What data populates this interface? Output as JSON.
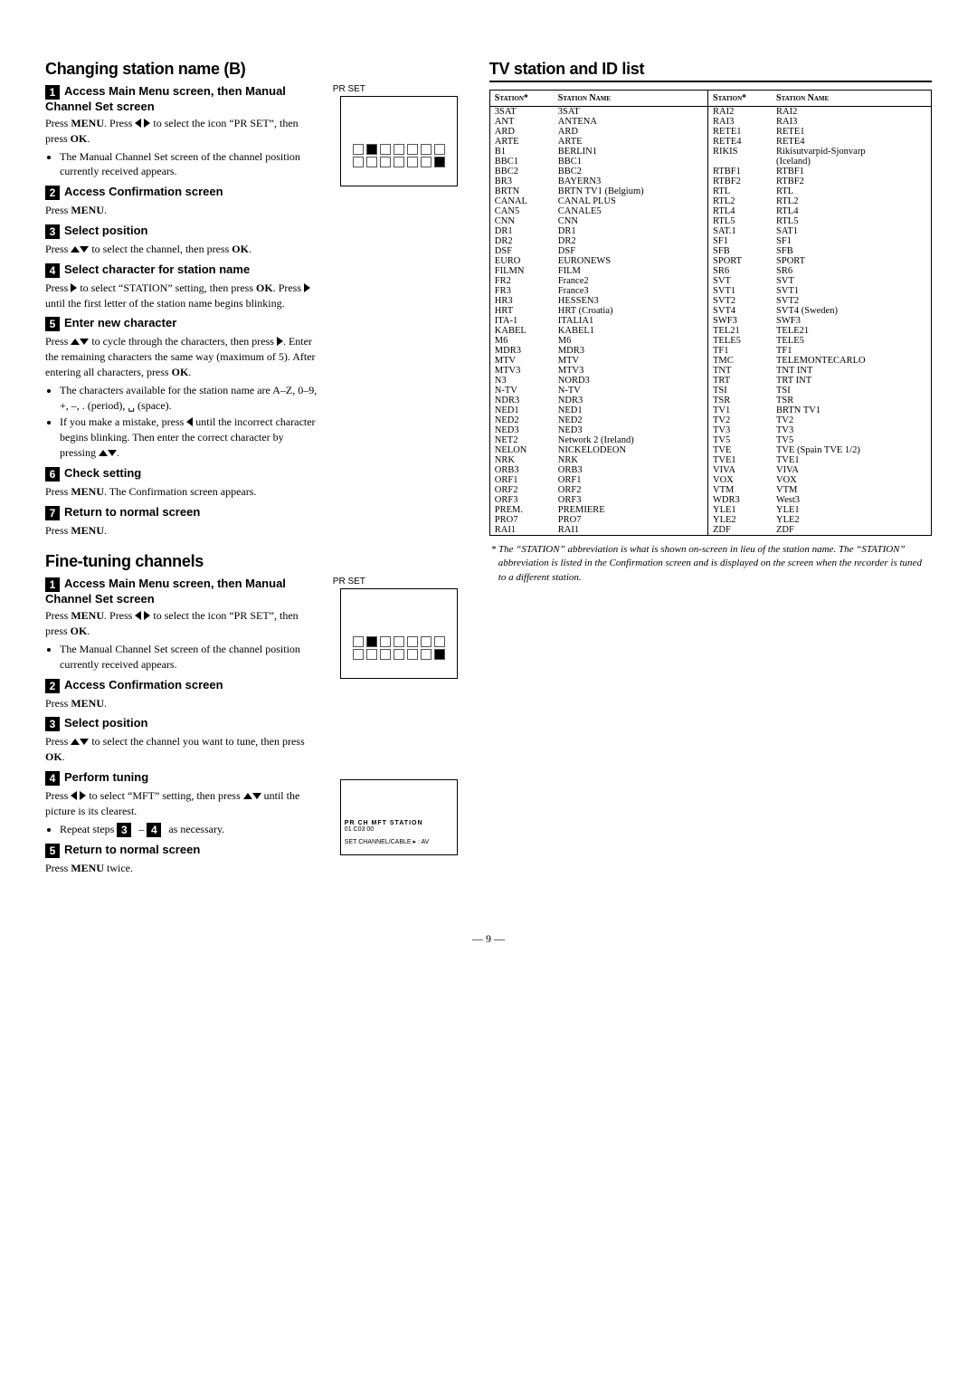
{
  "page_number": "— 9 —",
  "leftcol": {
    "sectionA": {
      "title": "Changing station name (B)",
      "fig1_label": "PR SET",
      "steps": [
        {
          "num": "1",
          "title": "Access Main Menu screen, then Manual Channel Set screen",
          "body": "Press <b>MENU</b>. Press ◁ ▷ to select the icon “PR SET”, then press <b>OK</b>.",
          "bullets": [
            "The Manual Channel Set screen of the channel position currently received appears."
          ]
        },
        {
          "num": "2",
          "title": "Access Confirmation screen",
          "body": "Press <b>MENU</b>."
        },
        {
          "num": "3",
          "title": "Select position",
          "body": "Press △▽ to select the channel, then press <b>OK</b>."
        },
        {
          "num": "4",
          "title": "Select character for station name",
          "body": "Press ▷ to select “STATION” setting, then press <b>OK</b>. Press ▷ until the first letter of the station name begins blinking."
        },
        {
          "num": "5",
          "title": "Enter new character",
          "body": "Press △▽ to cycle through the characters, then press ▷. Enter the remaining characters the same way (maximum of 5). After entering all characters, press <b>OK</b>.",
          "bullets": [
            "The characters available for the station name are A–Z, 0–9, +, –, . (period), ␣ (space).",
            "If you make a mistake, press ◁ until the incorrect character begins blinking. Then enter the correct character by pressing △▽."
          ]
        },
        {
          "num": "6",
          "title": "Check setting",
          "body": "Press <b>MENU</b>. The Confirmation screen appears."
        },
        {
          "num": "7",
          "title": "Return to normal screen",
          "body": "Press <b>MENU</b>."
        }
      ]
    },
    "sectionB": {
      "title": "Fine-tuning channels",
      "fig1_label": "PR SET",
      "fig2_lines": [
        "PR  CH  MFT  STATION",
        "01  C03  00",
        "SET    CHANNEL/CABLE ▸ : AV"
      ],
      "steps": [
        {
          "num": "1",
          "title": "Access Main Menu screen, then Manual Channel Set screen",
          "body": "Press <b>MENU</b>. Press ◁ ▷ to select the icon “PR SET”, then press <b>OK</b>.",
          "bullets": [
            "The Manual Channel Set screen of the channel position currently received appears."
          ]
        },
        {
          "num": "2",
          "title": "Access Confirmation screen",
          "body": "Press <b>MENU</b>."
        },
        {
          "num": "3",
          "title": "Select position",
          "body": "Press △▽ to select the channel you want to tune, then press <b>OK</b>."
        },
        {
          "num": "4",
          "title": "Perform tuning",
          "body": "Press ◁ ▷ to select “MFT” setting, then press △▽ until the picture is its clearest.",
          "bullets": [
            "Repeat steps <span class='num-badge'>3</span> – <span class='num-badge'>4</span> as necessary."
          ]
        },
        {
          "num": "5",
          "title": "Return to normal screen",
          "body": "Press <b>MENU</b> twice."
        }
      ]
    }
  },
  "rightcol": {
    "title": "TV station and ID list",
    "table_headers": [
      "Station*",
      "Station Name",
      "Station*",
      "Station Name"
    ],
    "rows": [
      [
        "3SAT",
        "3SAT",
        "RAI2",
        "RAI2"
      ],
      [
        "ANT",
        "ANTENA",
        "RAI3",
        "RAI3"
      ],
      [
        "ARD",
        "ARD",
        "RETE1",
        "RETE1"
      ],
      [
        "ARTE",
        "ARTE",
        "RETE4",
        "RETE4"
      ],
      [
        "B1",
        "BERLIN1",
        "RIKIS",
        "Rikisutvarpid-Sjonvarp"
      ],
      [
        "BBC1",
        "BBC1",
        "",
        "(Iceland)"
      ],
      [
        "BBC2",
        "BBC2",
        "RTBF1",
        "RTBF1"
      ],
      [
        "BR3",
        "BAYERN3",
        "RTBF2",
        "RTBF2"
      ],
      [
        "BRTN",
        "BRTN TV1 (Belgium)",
        "RTL",
        "RTL"
      ],
      [
        "CANAL",
        "CANAL PLUS",
        "RTL2",
        "RTL2"
      ],
      [
        "CAN5",
        "CANALE5",
        "RTL4",
        "RTL4"
      ],
      [
        "CNN",
        "CNN",
        "RTL5",
        "RTL5"
      ],
      [
        "DR1",
        "DR1",
        "SAT.1",
        "SAT1"
      ],
      [
        "DR2",
        "DR2",
        "SF1",
        "SF1"
      ],
      [
        "DSF",
        "DSF",
        "SFB",
        "SFB"
      ],
      [
        "EURO",
        "EURONEWS",
        "SPORT",
        "SPORT"
      ],
      [
        "FILMN",
        "FILM",
        "SR6",
        "SR6"
      ],
      [
        "FR2",
        "France2",
        "SVT",
        "SVT"
      ],
      [
        "FR3",
        "France3",
        "SVT1",
        "SVT1"
      ],
      [
        "HR3",
        "HESSEN3",
        "SVT2",
        "SVT2"
      ],
      [
        "HRT",
        "HRT (Croatia)",
        "SVT4",
        "SVT4 (Sweden)"
      ],
      [
        "ITA-1",
        "ITALIA1",
        "SWF3",
        "SWF3"
      ],
      [
        "KABEL",
        "KABEL1",
        "TEL21",
        "TELE21"
      ],
      [
        "M6",
        "M6",
        "TELE5",
        "TELE5"
      ],
      [
        "MDR3",
        "MDR3",
        "TF1",
        "TF1"
      ],
      [
        "MTV",
        "MTV",
        "TMC",
        "TELEMONTECARLO"
      ],
      [
        "MTV3",
        "MTV3",
        "TNT",
        "TNT INT"
      ],
      [
        "N3",
        "NORD3",
        "TRT",
        "TRT INT"
      ],
      [
        "N-TV",
        "N-TV",
        "TSI",
        "TSI"
      ],
      [
        "NDR3",
        "NDR3",
        "TSR",
        "TSR"
      ],
      [
        "NED1",
        "NED1",
        "TV1",
        "BRTN TV1"
      ],
      [
        "NED2",
        "NED2",
        "TV2",
        "TV2"
      ],
      [
        "NED3",
        "NED3",
        "TV3",
        "TV3"
      ],
      [
        "NET2",
        "Network 2 (Ireland)",
        "TV5",
        "TV5"
      ],
      [
        "NELON",
        "NICKELODEON",
        "TVE",
        "TVE (Spain TVE 1/2)"
      ],
      [
        "NRK",
        "NRK",
        "TVE1",
        "TVE1"
      ],
      [
        "ORB3",
        "ORB3",
        "VIVA",
        "VIVA"
      ],
      [
        "ORF1",
        "ORF1",
        "VOX",
        "VOX"
      ],
      [
        "ORF2",
        "ORF2",
        "VTM",
        "VTM"
      ],
      [
        "ORF3",
        "ORF3",
        "WDR3",
        "West3"
      ],
      [
        "PREM.",
        "PREMIERE",
        "YLE1",
        "YLE1"
      ],
      [
        "PRO7",
        "PRO7",
        "YLE2",
        "YLE2"
      ],
      [
        "RAI1",
        "RAI1",
        "ZDF",
        "ZDF"
      ]
    ],
    "footnote": "* The “STATION” abbreviation is what is shown on-screen in lieu of the station name. The “STATION” abbreviation is listed in the Confirmation screen and is displayed on the screen when the recorder is tuned to a different station."
  }
}
